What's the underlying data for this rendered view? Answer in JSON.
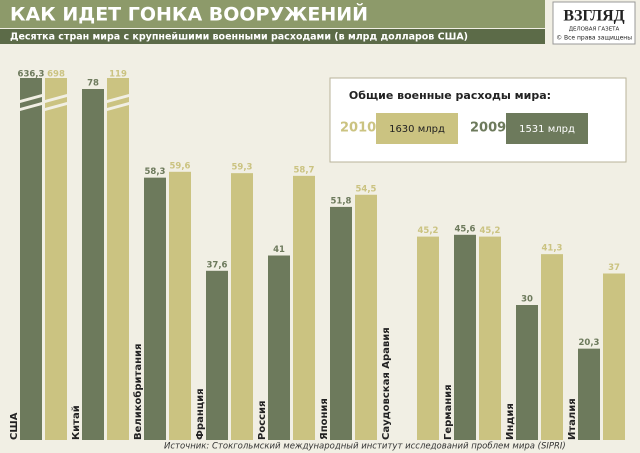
{
  "chart_data": {
    "type": "bar",
    "title": "КАК ИДЕТ ГОНКА ВООРУЖЕНИЙ",
    "subtitle": "Десятка стран мира с крупнейшими военными расходами (в млрд долларов США)",
    "brand": {
      "name": "ВЗГЛЯД",
      "tagline": "ДЕЛОВАЯ ГАЗЕТА",
      "rights": "© Все права защищены"
    },
    "source": "Источник: Стокгольмский международный институт исследований проблем мира (SIPRI)",
    "categories": [
      "США",
      "Китай",
      "Великобритания",
      "Франция",
      "Россия",
      "Япония",
      "Саудовская Аравия",
      "Германия",
      "Индия",
      "Италия"
    ],
    "series": [
      {
        "name": "2009",
        "color": "#6d7a5c",
        "values": [
          636.3,
          78,
          58.3,
          37.6,
          41,
          51.8,
          null,
          45.6,
          30,
          20.3
        ],
        "value_labels": [
          "636,3",
          "78",
          "58,3",
          "37,6",
          "41",
          "51,8",
          null,
          "45,6",
          "30",
          "20,3"
        ]
      },
      {
        "name": "2010",
        "color": "#cbc381",
        "values": [
          698,
          119,
          59.6,
          59.3,
          58.7,
          54.5,
          45.2,
          45.2,
          41.3,
          37
        ],
        "value_labels": [
          "698",
          "119",
          "59,6",
          "59,3",
          "58,7",
          "54,5",
          "45,2",
          "45,2",
          "41,3",
          "37"
        ]
      }
    ],
    "totals_title": "Общие военные расходы мира:",
    "totals": [
      {
        "series": "2010",
        "label": "1630 млрд"
      },
      {
        "series": "2009",
        "label": "1531 млрд"
      }
    ],
    "ylim": [
      0,
      80
    ]
  }
}
